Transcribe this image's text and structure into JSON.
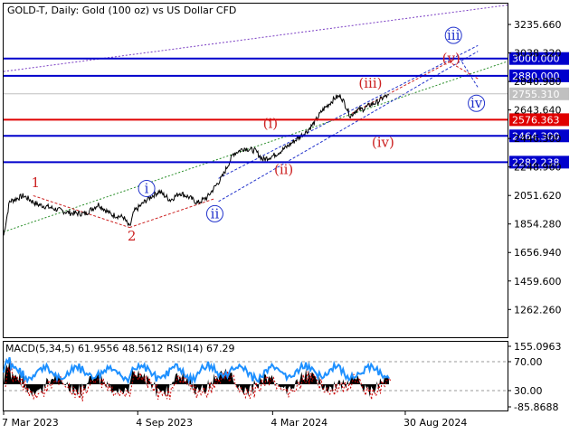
{
  "chart_data": {
    "type": "line",
    "title": "GOLD-T, Daily:  Gold (100 oz) vs US Dollar CFD",
    "price_axis": {
      "range": [
        1070,
        3380
      ],
      "ticks": [
        "3235.660",
        "3038.320",
        "2840.980",
        "2643.640",
        "2446.300",
        "2248.960",
        "2051.620",
        "1854.280",
        "1656.940",
        "1459.600",
        "1262.260"
      ]
    },
    "x_axis": {
      "range_days": [
        0,
        680
      ],
      "ticks": [
        {
          "label": "7 Mar 2023",
          "day": 0
        },
        {
          "label": "4 Sep 2023",
          "day": 181
        },
        {
          "label": "4 Mar 2024",
          "day": 363
        },
        {
          "label": "30 Aug 2024",
          "day": 542
        }
      ]
    },
    "price_series": {
      "name": "GOLD-T close",
      "anchors": [
        [
          0,
          1775
        ],
        [
          8,
          2010
        ],
        [
          27,
          2050
        ],
        [
          45,
          1990
        ],
        [
          58,
          1975
        ],
        [
          75,
          1950
        ],
        [
          90,
          1930
        ],
        [
          110,
          1925
        ],
        [
          128,
          1990
        ],
        [
          145,
          1920
        ],
        [
          162,
          1900
        ],
        [
          170,
          1830
        ],
        [
          176,
          1940
        ],
        [
          195,
          2030
        ],
        [
          210,
          2080
        ],
        [
          225,
          2020
        ],
        [
          238,
          2070
        ],
        [
          250,
          2040
        ],
        [
          262,
          2000
        ],
        [
          275,
          2040
        ],
        [
          295,
          2180
        ],
        [
          310,
          2340
        ],
        [
          325,
          2380
        ],
        [
          340,
          2360
        ],
        [
          350,
          2300
        ],
        [
          365,
          2330
        ],
        [
          380,
          2380
        ],
        [
          395,
          2440
        ],
        [
          410,
          2500
        ],
        [
          420,
          2560
        ],
        [
          430,
          2640
        ],
        [
          440,
          2690
        ],
        [
          448,
          2730
        ],
        [
          455,
          2740
        ],
        [
          462,
          2670
        ],
        [
          468,
          2600
        ],
        [
          475,
          2640
        ],
        [
          485,
          2650
        ],
        [
          495,
          2680
        ],
        [
          505,
          2700
        ],
        [
          512,
          2730
        ],
        [
          520,
          2745
        ]
      ]
    },
    "levels": [
      {
        "value": 3000.0,
        "label": "3000.000",
        "color": "#0000cc"
      },
      {
        "value": 2880.0,
        "label": "2880.000",
        "color": "#0000cc"
      },
      {
        "value": 2755.31,
        "label": "2755.310",
        "color": "#c0c0c0"
      },
      {
        "value": 2576.363,
        "label": "2576.363",
        "color": "#e00000"
      },
      {
        "value": 2464.3,
        "label": "2464.300",
        "color": "#0000cc"
      },
      {
        "value": 2282.238,
        "label": "2282.238",
        "color": "#0000cc"
      }
    ],
    "wave_labels": [
      {
        "text": "1",
        "day": 43,
        "price": 2140,
        "color": "#cc2222",
        "circle": false
      },
      {
        "text": "2",
        "day": 173,
        "price": 1770,
        "color": "#cc2222",
        "circle": false
      },
      {
        "text": "i",
        "day": 193,
        "price": 2100,
        "color": "#2233cc",
        "circle": true
      },
      {
        "text": "ii",
        "day": 285,
        "price": 1925,
        "color": "#2233cc",
        "circle": true
      },
      {
        "text": "(i)",
        "day": 360,
        "price": 2550,
        "color": "#cc2222",
        "circle": false
      },
      {
        "text": "(ii)",
        "day": 378,
        "price": 2230,
        "color": "#cc2222",
        "circle": false
      },
      {
        "text": "(iii)",
        "day": 495,
        "price": 2830,
        "color": "#cc2222",
        "circle": false
      },
      {
        "text": "(iv)",
        "day": 512,
        "price": 2420,
        "color": "#cc2222",
        "circle": false
      },
      {
        "text": "(v)",
        "day": 604,
        "price": 3000,
        "color": "#cc2222",
        "circle": false
      },
      {
        "text": "iii",
        "day": 607,
        "price": 3160,
        "color": "#2233cc",
        "circle": true
      },
      {
        "text": "iv",
        "day": 638,
        "price": 2690,
        "color": "#2233cc",
        "circle": true
      }
    ],
    "indicator": {
      "title": "MACD(5,34,5) 61.9556 48.5612 RSI(14) 67.29",
      "ticks": [
        "155.0963",
        "70.00",
        "30.00",
        "-85.8688"
      ],
      "rsi_color": "#1e90ff",
      "macd_color": "#000000",
      "signal_color": "#cc0000"
    }
  }
}
